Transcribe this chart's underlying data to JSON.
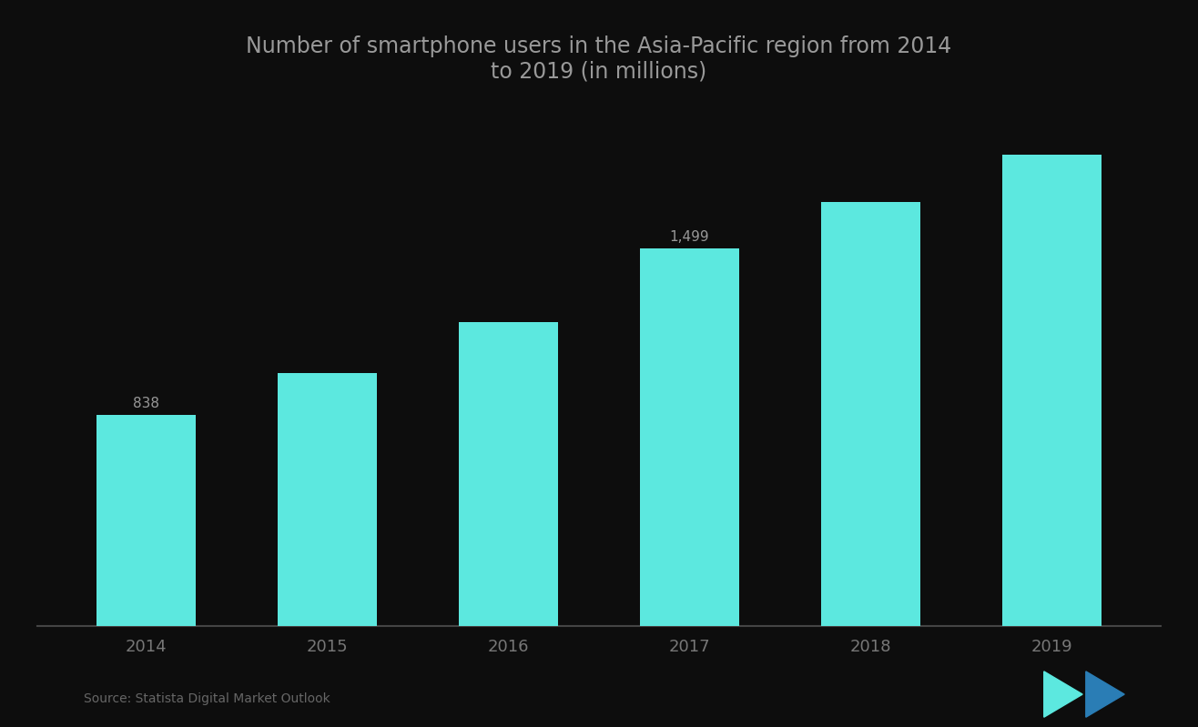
{
  "categories": [
    "2014",
    "2015",
    "2016",
    "2017",
    "2018",
    "2019"
  ],
  "values": [
    838,
    1006,
    1207,
    1499,
    1685,
    1870
  ],
  "bar_color": "#5ce8df",
  "background_color": "#0d0d0d",
  "title_line1": "Number of smartphone users in the Asia-Pacific region from 2014",
  "title_line2": "to 2019 (in millions)",
  "title_color": "#999999",
  "axis_label_color": "#777777",
  "label_indices": [
    0,
    3
  ],
  "label_texts": [
    "838",
    "1,499"
  ],
  "source_text": "Source: Statista Digital Market Outlook",
  "ylim": [
    0,
    2100
  ],
  "bar_width": 0.55,
  "title_fontsize": 17,
  "tick_fontsize": 13,
  "label_fontsize": 11
}
